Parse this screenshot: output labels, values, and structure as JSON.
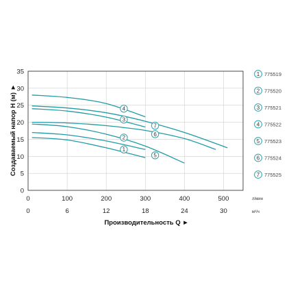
{
  "colors": {
    "curve": "#1f9ba5",
    "marker": "#2aa3ad",
    "axis": "#222222",
    "grid": "#cfcfcf",
    "text": "#222222"
  },
  "chart_data": {
    "type": "line",
    "xlabel": "Производительность Q ►",
    "ylabel": "Создаваемый напор H (м) ►",
    "x_unit_primary": "л/мин",
    "x_unit_secondary": "м³/ч",
    "xlim": [
      0,
      550
    ],
    "ylim": [
      0,
      35
    ],
    "x_ticks": [
      "0",
      "100",
      "200",
      "300",
      "400",
      "500"
    ],
    "x2_ticks": [
      "0",
      "6",
      "12",
      "18",
      "24",
      "30"
    ],
    "y_ticks": [
      "0",
      "5",
      "10",
      "15",
      "20",
      "25",
      "30",
      "35"
    ],
    "grid": true,
    "legend_position": "right",
    "series": [
      {
        "name": "775519",
        "marker": "1",
        "x": [
          10,
          100,
          200,
          300
        ],
        "y": [
          15.5,
          14.8,
          12.5,
          9.6
        ],
        "marker_at": [
          245,
          12
        ]
      },
      {
        "name": "775520",
        "marker": "2",
        "x": [
          10,
          100,
          200,
          300
        ],
        "y": [
          17,
          16.3,
          14.5,
          12
        ],
        "marker_at": [
          245,
          15.5
        ]
      },
      {
        "name": "775521",
        "marker": "3",
        "x": [
          10,
          100,
          200,
          300
        ],
        "y": [
          24,
          23.3,
          21.5,
          18.6
        ],
        "marker_at": [
          245,
          20.8
        ]
      },
      {
        "name": "775522",
        "marker": "4",
        "x": [
          10,
          100,
          200,
          300
        ],
        "y": [
          28,
          27.3,
          25.5,
          21.6
        ],
        "marker_at": [
          245,
          24
        ]
      },
      {
        "name": "775523",
        "marker": "5",
        "x": [
          10,
          100,
          200,
          300,
          400
        ],
        "y": [
          19.5,
          18.7,
          16.5,
          13,
          8
        ],
        "marker_at": [
          325,
          10.3
        ]
      },
      {
        "name": "775524",
        "marker": "6",
        "x": [
          10,
          100,
          200,
          300,
          400,
          480
        ],
        "y": [
          20,
          19.8,
          19,
          17.6,
          15.2,
          12
        ],
        "marker_at": [
          325,
          16.5
        ]
      },
      {
        "name": "775525",
        "marker": "7",
        "x": [
          10,
          100,
          200,
          300,
          400,
          510
        ],
        "y": [
          24.8,
          24.2,
          22.8,
          20.3,
          17,
          12.5
        ],
        "marker_at": [
          325,
          19
        ]
      }
    ]
  }
}
